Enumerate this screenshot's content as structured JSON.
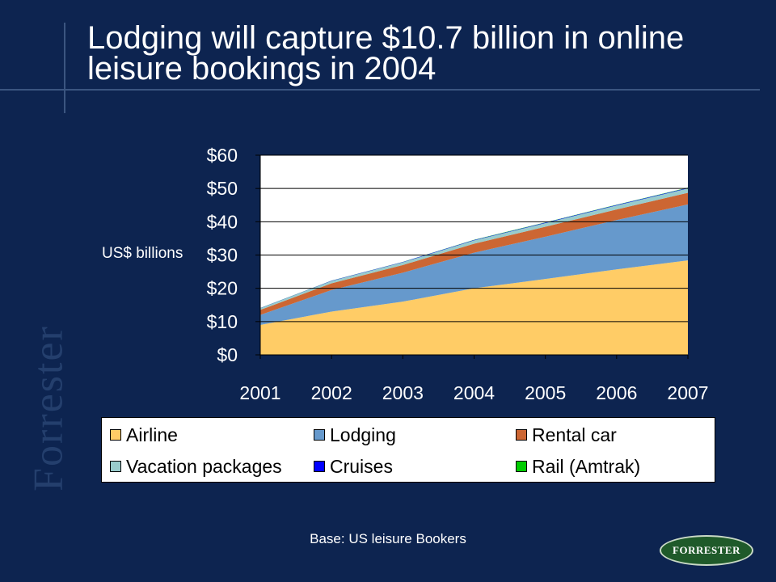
{
  "slide": {
    "title": "Lodging will capture $10.7 billion in online leisure bookings in 2004",
    "unit_label": "US$ billions",
    "base_note": "Base: US leisure Bookers",
    "brand_side": "Forrester",
    "brand_badge": "FORRESTER"
  },
  "chart_data": {
    "type": "area",
    "stacked": true,
    "x": [
      "2001",
      "2002",
      "2003",
      "2004",
      "2005",
      "2006",
      "2007"
    ],
    "ylim": [
      0,
      60
    ],
    "y_ticks": [
      "$0",
      "$10",
      "$20",
      "$30",
      "$40",
      "$50",
      "$60"
    ],
    "ylabel": "US$ billions",
    "grid": true,
    "legend_position": "bottom",
    "series": [
      {
        "name": "Airline",
        "color": "#ffcc66",
        "values": [
          9,
          13,
          16,
          20,
          22.8,
          25.7,
          28.4
        ]
      },
      {
        "name": "Lodging",
        "color": "#6699cc",
        "values": [
          3,
          6.5,
          8.7,
          10.7,
          12.7,
          14.8,
          16.8
        ]
      },
      {
        "name": "Rental car",
        "color": "#cc6633",
        "values": [
          1.5,
          2,
          2.3,
          2.7,
          3,
          3.2,
          3.5
        ]
      },
      {
        "name": "Vacation packages",
        "color": "#99cccc",
        "values": [
          0.5,
          0.7,
          0.8,
          1,
          1.1,
          1.2,
          1.3
        ]
      },
      {
        "name": "Cruises",
        "color": "#0000ff",
        "values": [
          0.05,
          0.08,
          0.1,
          0.12,
          0.14,
          0.15,
          0.17
        ]
      },
      {
        "name": "Rail (Amtrak)",
        "color": "#00cc00",
        "values": [
          0.03,
          0.04,
          0.05,
          0.06,
          0.07,
          0.08,
          0.09
        ]
      }
    ]
  }
}
